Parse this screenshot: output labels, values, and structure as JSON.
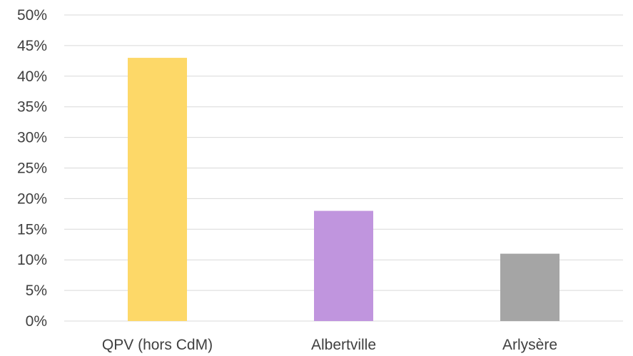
{
  "chart_data": {
    "type": "bar",
    "categories": [
      "QPV (hors CdM)",
      "Albertville",
      "Arlysère"
    ],
    "values": [
      43,
      18,
      11
    ],
    "colors": [
      "#FDD868",
      "#C095DE",
      "#A5A5A5"
    ],
    "value_format": "percent",
    "ylim": [
      0,
      50
    ],
    "ytick_step": 5,
    "yticks": [
      "0%",
      "5%",
      "10%",
      "15%",
      "20%",
      "25%",
      "30%",
      "35%",
      "40%",
      "45%",
      "50%"
    ],
    "grid": true,
    "legend": "none",
    "title": "",
    "xlabel": "",
    "ylabel": ""
  }
}
